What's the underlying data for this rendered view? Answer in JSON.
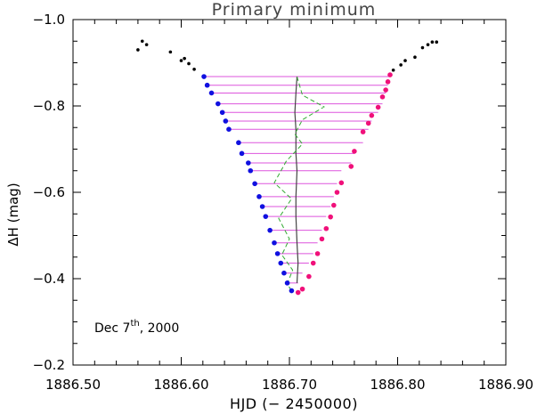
{
  "chart_data": {
    "type": "scatter",
    "title": "Primary minimum",
    "xlabel": "HJD (− 2450000)",
    "ylabel": "ΔH (mag)",
    "xlim": [
      1886.5,
      1886.9
    ],
    "ylim": [
      -0.2,
      -1.0
    ],
    "y_inverted": true,
    "x_ticks": [
      1886.5,
      1886.6,
      1886.7,
      1886.8,
      1886.9
    ],
    "x_tick_labels": [
      "1886.50",
      "1886.60",
      "1886.70",
      "1886.80",
      "1886.90"
    ],
    "y_ticks": [
      -0.2,
      -0.4,
      -0.6,
      -0.8,
      -1.0
    ],
    "y_tick_labels": [
      "−0.2",
      "−0.4",
      "−0.6",
      "−0.8",
      "−1.0"
    ],
    "annotation": {
      "text": "Dec 7",
      "sup": "th",
      "suffix": ", 2000"
    },
    "colors": {
      "out_of_eclipse": "#000000",
      "descending": "#1010e0",
      "ascending": "#f0107a",
      "chords": "#dd55dd",
      "bisector": "#444444",
      "bisector_dashed": "#33aa33"
    },
    "series": [
      {
        "role": "out_of_eclipse",
        "points": [
          [
            1886.56,
            -0.93
          ],
          [
            1886.564,
            -0.95
          ],
          [
            1886.568,
            -0.942
          ],
          [
            1886.59,
            -0.925
          ],
          [
            1886.6,
            -0.905
          ],
          [
            1886.603,
            -0.91
          ],
          [
            1886.607,
            -0.898
          ],
          [
            1886.612,
            -0.885
          ],
          [
            1886.796,
            -0.883
          ],
          [
            1886.803,
            -0.895
          ],
          [
            1886.807,
            -0.905
          ],
          [
            1886.816,
            -0.913
          ],
          [
            1886.823,
            -0.935
          ],
          [
            1886.828,
            -0.942
          ],
          [
            1886.832,
            -0.948
          ],
          [
            1886.836,
            -0.948
          ]
        ]
      },
      {
        "role": "descending",
        "points": [
          [
            1886.621,
            -0.868
          ],
          [
            1886.624,
            -0.848
          ],
          [
            1886.628,
            -0.83
          ],
          [
            1886.634,
            -0.805
          ],
          [
            1886.638,
            -0.785
          ],
          [
            1886.641,
            -0.765
          ],
          [
            1886.644,
            -0.746
          ],
          [
            1886.653,
            -0.715
          ],
          [
            1886.656,
            -0.69
          ],
          [
            1886.662,
            -0.668
          ],
          [
            1886.664,
            -0.65
          ],
          [
            1886.668,
            -0.62
          ],
          [
            1886.672,
            -0.59
          ],
          [
            1886.675,
            -0.567
          ],
          [
            1886.678,
            -0.544
          ],
          [
            1886.682,
            -0.512
          ],
          [
            1886.686,
            -0.483
          ],
          [
            1886.689,
            -0.458
          ],
          [
            1886.692,
            -0.436
          ],
          [
            1886.695,
            -0.413
          ],
          [
            1886.698,
            -0.39
          ],
          [
            1886.702,
            -0.372
          ]
        ]
      },
      {
        "role": "ascending",
        "points": [
          [
            1886.708,
            -0.368
          ],
          [
            1886.712,
            -0.376
          ],
          [
            1886.718,
            -0.405
          ],
          [
            1886.722,
            -0.436
          ],
          [
            1886.726,
            -0.458
          ],
          [
            1886.73,
            -0.492
          ],
          [
            1886.734,
            -0.516
          ],
          [
            1886.738,
            -0.543
          ],
          [
            1886.741,
            -0.57
          ],
          [
            1886.744,
            -0.6
          ],
          [
            1886.748,
            -0.622
          ],
          [
            1886.757,
            -0.66
          ],
          [
            1886.76,
            -0.695
          ],
          [
            1886.768,
            -0.74
          ],
          [
            1886.773,
            -0.76
          ],
          [
            1886.776,
            -0.778
          ],
          [
            1886.782,
            -0.797
          ],
          [
            1886.786,
            -0.821
          ],
          [
            1886.789,
            -0.837
          ],
          [
            1886.791,
            -0.856
          ],
          [
            1886.793,
            -0.872
          ]
        ]
      },
      {
        "role": "chords",
        "y": [
          -0.868,
          -0.848,
          -0.83,
          -0.805,
          -0.785,
          -0.765,
          -0.746,
          -0.715,
          -0.69,
          -0.668,
          -0.65,
          -0.62,
          -0.59,
          -0.567,
          -0.544,
          -0.512,
          -0.483,
          -0.458,
          -0.436,
          -0.413,
          -0.39
        ],
        "x_left": [
          1886.621,
          1886.624,
          1886.628,
          1886.634,
          1886.638,
          1886.641,
          1886.644,
          1886.653,
          1886.656,
          1886.662,
          1886.664,
          1886.668,
          1886.672,
          1886.675,
          1886.678,
          1886.682,
          1886.686,
          1886.689,
          1886.692,
          1886.695,
          1886.698
        ],
        "x_right": [
          1886.793,
          1886.791,
          1886.789,
          1886.786,
          1886.782,
          1886.776,
          1886.773,
          1886.768,
          1886.76,
          1886.757,
          1886.748,
          1886.744,
          1886.741,
          1886.738,
          1886.734,
          1886.73,
          1886.726,
          1886.722,
          1886.718,
          1886.712,
          1886.708
        ]
      },
      {
        "role": "bisector",
        "style": "solid",
        "points": [
          [
            1886.707,
            -0.868
          ],
          [
            1886.706,
            -0.83
          ],
          [
            1886.705,
            -0.785
          ],
          [
            1886.706,
            -0.746
          ],
          [
            1886.706,
            -0.69
          ],
          [
            1886.707,
            -0.65
          ],
          [
            1886.706,
            -0.59
          ],
          [
            1886.706,
            -0.544
          ],
          [
            1886.707,
            -0.483
          ],
          [
            1886.708,
            -0.436
          ],
          [
            1886.707,
            -0.39
          ]
        ]
      },
      {
        "role": "bisector_dashed",
        "style": "dashed",
        "points": [
          [
            1886.707,
            -0.868
          ],
          [
            1886.712,
            -0.825
          ],
          [
            1886.732,
            -0.798
          ],
          [
            1886.712,
            -0.768
          ],
          [
            1886.705,
            -0.735
          ],
          [
            1886.712,
            -0.712
          ],
          [
            1886.697,
            -0.672
          ],
          [
            1886.686,
            -0.622
          ],
          [
            1886.702,
            -0.585
          ],
          [
            1886.69,
            -0.54
          ],
          [
            1886.7,
            -0.492
          ],
          [
            1886.693,
            -0.455
          ],
          [
            1886.703,
            -0.42
          ],
          [
            1886.698,
            -0.388
          ],
          [
            1886.702,
            -0.372
          ]
        ]
      }
    ]
  }
}
